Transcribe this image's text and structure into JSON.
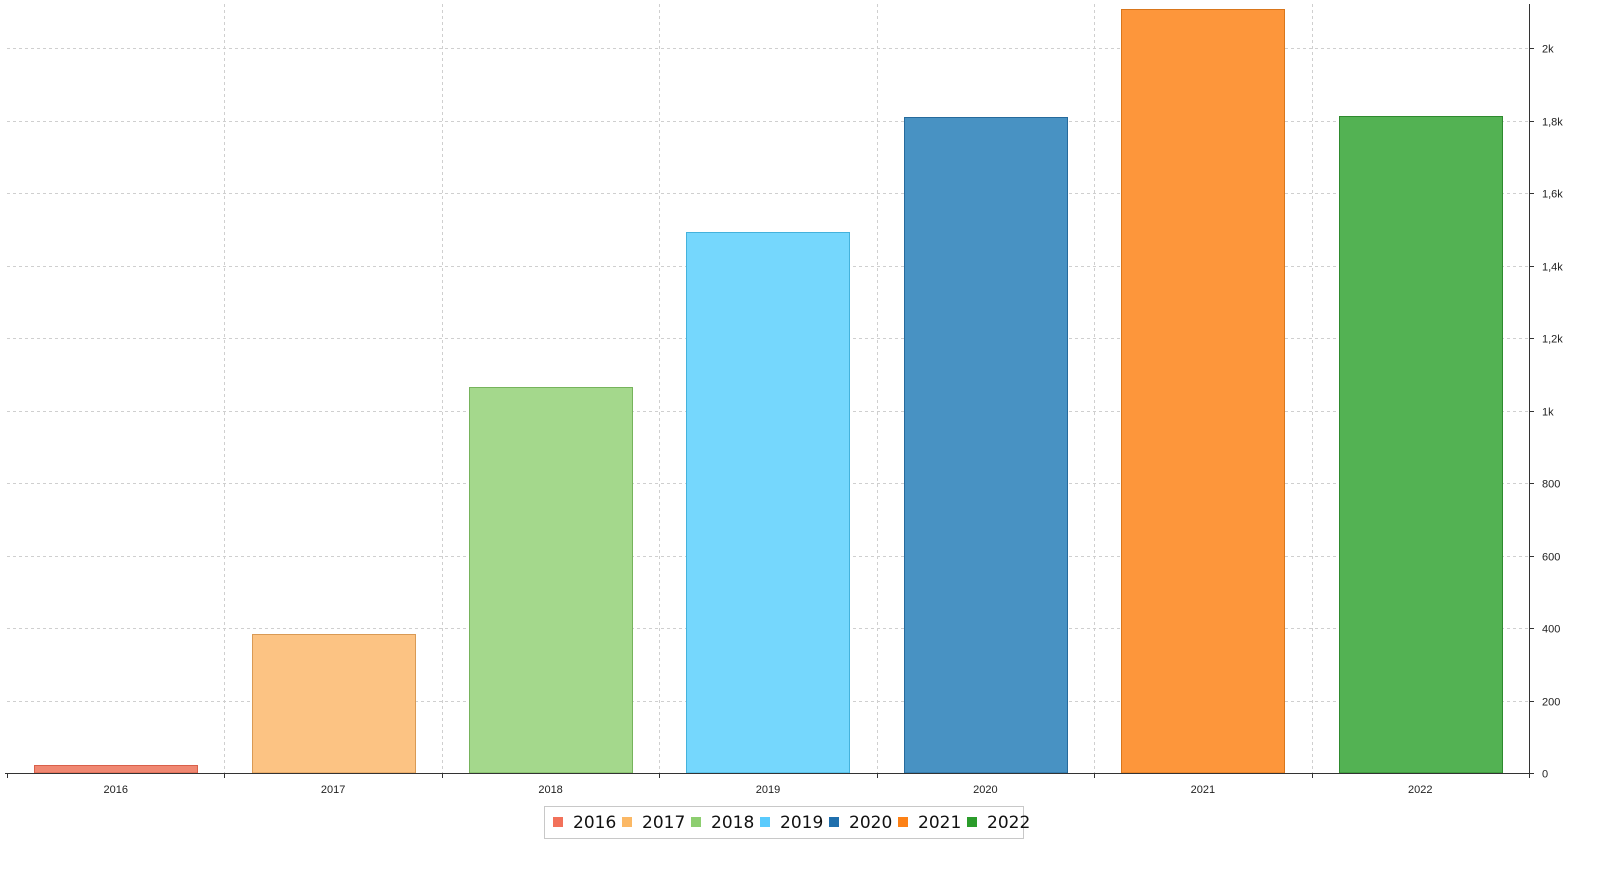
{
  "chart_data": {
    "type": "bar",
    "title": "",
    "xlabel": "",
    "ylabel": "",
    "categories": [
      "2016",
      "2017",
      "2018",
      "2019",
      "2020",
      "2021",
      "2022"
    ],
    "values": [
      22,
      383,
      1065,
      1493,
      1810,
      2108,
      1813
    ],
    "ylim": [
      0,
      2120
    ],
    "y_ticks": [
      0,
      200,
      400,
      600,
      800,
      1000,
      1200,
      1400,
      1600,
      1800,
      2000
    ],
    "y_tick_labels": [
      "0",
      "200",
      "400",
      "600",
      "800",
      "1k",
      "1,2k",
      "1,4k",
      "1,6k",
      "1,8k",
      "2k"
    ],
    "y_axis_side": "right",
    "grid": true,
    "grid_style": "dashed",
    "legend_position": "bottom-center",
    "legend_entries": [
      "2016",
      "2017",
      "2018",
      "2019",
      "2020",
      "2021",
      "2022"
    ],
    "bar_fill_colors": [
      "#f08872",
      "#fcc383",
      "#a4d88c",
      "#75d7fd",
      "#4892c3",
      "#fd963b",
      "#53b253"
    ],
    "bar_stroke_colors": [
      "#d9604a",
      "#d99a55",
      "#76b35c",
      "#44b2dc",
      "#266a9c",
      "#d9761b",
      "#2e8a2e"
    ],
    "legend_swatch_colors": [
      "#f2715a",
      "#fbb865",
      "#8dce70",
      "#5acbfd",
      "#1f6fad",
      "#fd8116",
      "#2b9c2b"
    ]
  }
}
